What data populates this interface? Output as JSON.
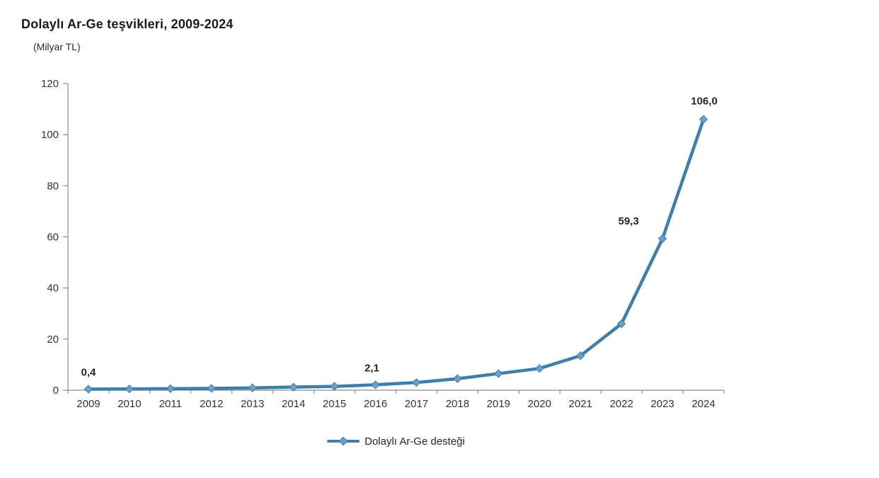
{
  "chart_data": {
    "type": "line",
    "title": "Dolaylı Ar-Ge teşvikleri, 2009-2024",
    "subtitle": "(Milyar TL)",
    "unit": "Milyar TL",
    "categories": [
      "2009",
      "2010",
      "2011",
      "2012",
      "2013",
      "2014",
      "2015",
      "2016",
      "2017",
      "2018",
      "2019",
      "2020",
      "2021",
      "2022",
      "2023",
      "2024"
    ],
    "series": [
      {
        "name": "Dolaylı Ar-Ge desteği",
        "values": [
          0.4,
          0.5,
          0.6,
          0.7,
          0.9,
          1.2,
          1.5,
          2.1,
          3.0,
          4.5,
          6.5,
          8.5,
          13.5,
          26.0,
          59.3,
          106.0
        ]
      }
    ],
    "data_labels": [
      {
        "category": "2009",
        "text": "0,4"
      },
      {
        "category": "2016",
        "text": "2,1"
      },
      {
        "category": "2023",
        "text": "59,3"
      },
      {
        "category": "2024",
        "text": "106,0"
      }
    ],
    "xlabel": "",
    "ylabel": "",
    "ylim": [
      0,
      120
    ],
    "ytick_step": 20,
    "grid": false,
    "legend_position": "bottom-center",
    "colors": {
      "line": "#3f7dab",
      "marker_fill": "#69a1c8",
      "axis": "#8c8c8c",
      "tick_text": "#333333",
      "title_text": "#1a1a1a",
      "data_label_text": "#262626"
    }
  }
}
